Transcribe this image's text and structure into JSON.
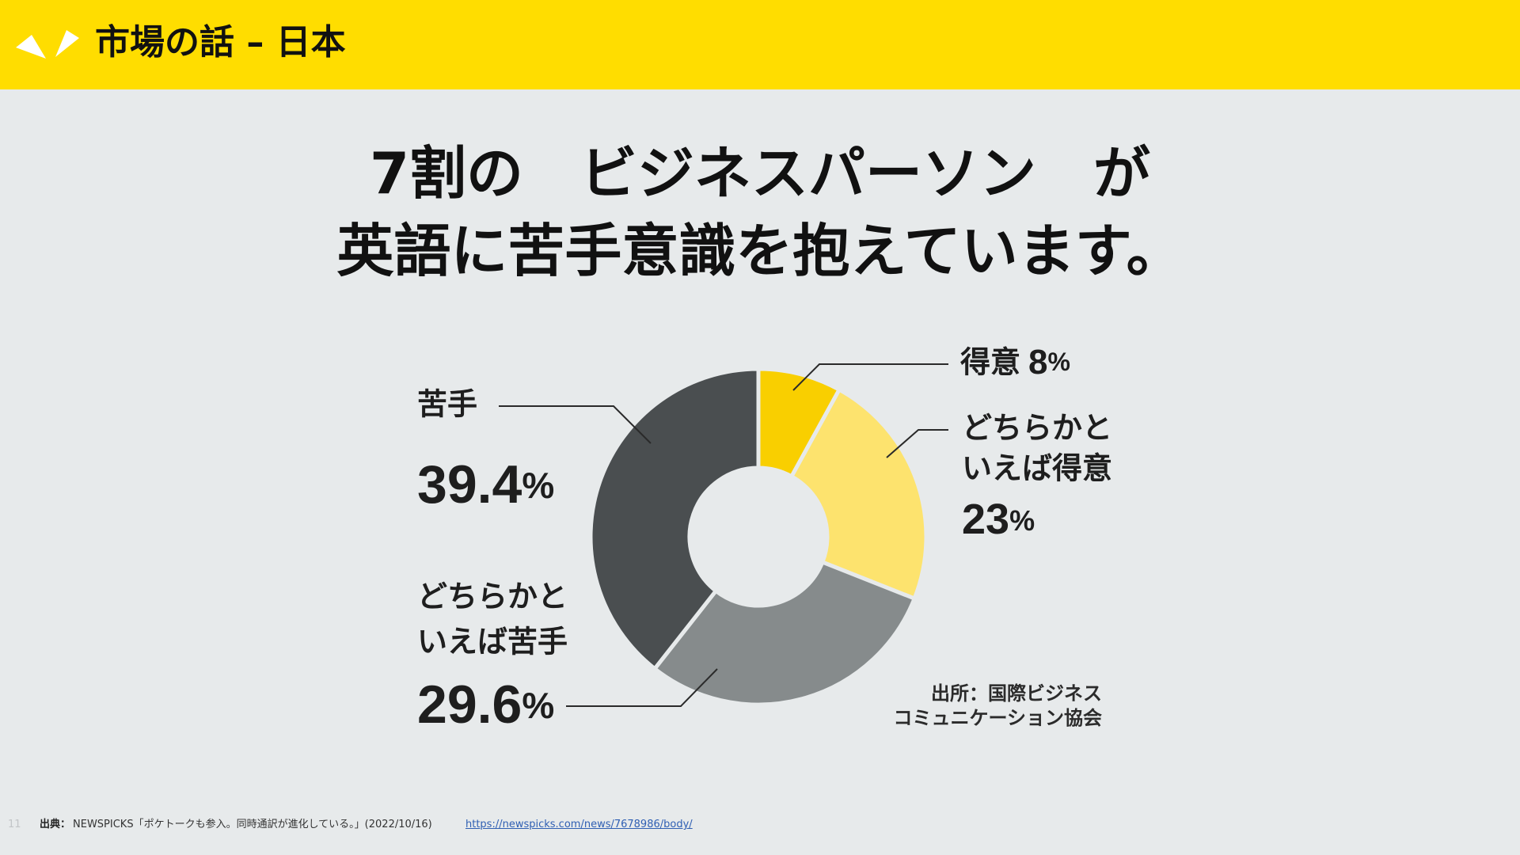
{
  "header": {
    "title": "市場の話 – 日本",
    "logo_icon": "double-chevron-logo-icon"
  },
  "headline": {
    "line1": "7割の　ビジネスパーソン　が",
    "line2": "英語に苦手意識を抱えています。"
  },
  "chart_data": {
    "type": "pie",
    "variant": "donut",
    "slices": [
      {
        "label": "得意",
        "value": 8,
        "display": "8%",
        "color": "#F9CF00"
      },
      {
        "label": "どちらかといえば得意",
        "label_lines": [
          "どちらかと",
          "いえば得意"
        ],
        "value": 23,
        "display": "23%",
        "color": "#FDE36E"
      },
      {
        "label": "どちらかといえば苦手",
        "label_lines": [
          "どちらかと",
          "いえば苦手"
        ],
        "value": 29.6,
        "display": "29.6%",
        "color": "#868B8C"
      },
      {
        "label": "苦手",
        "value": 39.4,
        "display": "39.4%",
        "color": "#4A4E50"
      }
    ],
    "credit_lines": [
      "出所：国際ビジネス",
      "コミュニケーション協会"
    ]
  },
  "footer": {
    "page_number": "11",
    "source_label": "出典：",
    "source_text": "NEWSPICKS「ポケトークも参入。同時通訳が進化している。」(2022/10/16)",
    "source_url": "https://newspicks.com/news/7678986/body/"
  },
  "colors": {
    "accent": "#FFDD00",
    "background": "#E7EAEB"
  }
}
